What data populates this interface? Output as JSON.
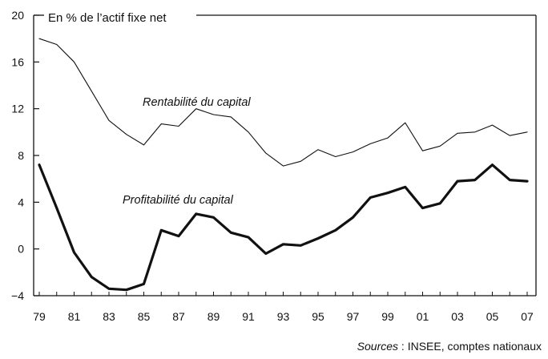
{
  "chart_data": {
    "type": "line",
    "title": "",
    "ylabel": "En % de l’actif fixe net",
    "xlabel": "",
    "x": [
      "79",
      "80",
      "81",
      "82",
      "83",
      "84",
      "85",
      "86",
      "87",
      "88",
      "89",
      "90",
      "91",
      "92",
      "93",
      "94",
      "95",
      "96",
      "97",
      "98",
      "99",
      "00",
      "01",
      "02",
      "03",
      "04",
      "05",
      "06",
      "07"
    ],
    "x_tick_labels": [
      "79",
      "81",
      "83",
      "85",
      "87",
      "89",
      "91",
      "93",
      "95",
      "97",
      "99",
      "01",
      "03",
      "05",
      "07"
    ],
    "y_ticks": [
      -4,
      0,
      4,
      8,
      12,
      16,
      20
    ],
    "ylim": [
      -4,
      20
    ],
    "grid": false,
    "series": [
      {
        "name": "Rentabilité du capital",
        "stroke": "thin",
        "values": [
          18.0,
          17.5,
          16.0,
          13.5,
          11.0,
          9.8,
          8.9,
          10.7,
          10.5,
          12.0,
          11.5,
          11.3,
          10.0,
          8.2,
          7.1,
          7.5,
          8.5,
          7.9,
          8.3,
          9.0,
          9.5,
          10.8,
          8.4,
          8.8,
          9.9,
          10.0,
          10.6,
          9.7,
          10.0
        ]
      },
      {
        "name": "Profitabilité du capital",
        "stroke": "thick",
        "values": [
          7.2,
          3.5,
          -0.3,
          -2.4,
          -3.4,
          -3.5,
          -3.0,
          1.6,
          1.1,
          3.0,
          2.7,
          1.4,
          1.0,
          -0.4,
          0.4,
          0.3,
          0.9,
          1.6,
          2.7,
          4.4,
          4.8,
          5.3,
          3.5,
          3.9,
          5.8,
          5.9,
          7.2,
          5.9,
          5.8
        ]
      }
    ]
  },
  "source": {
    "label": "Sources",
    "separator": " : ",
    "text": "INSEE, comptes nationaux"
  }
}
